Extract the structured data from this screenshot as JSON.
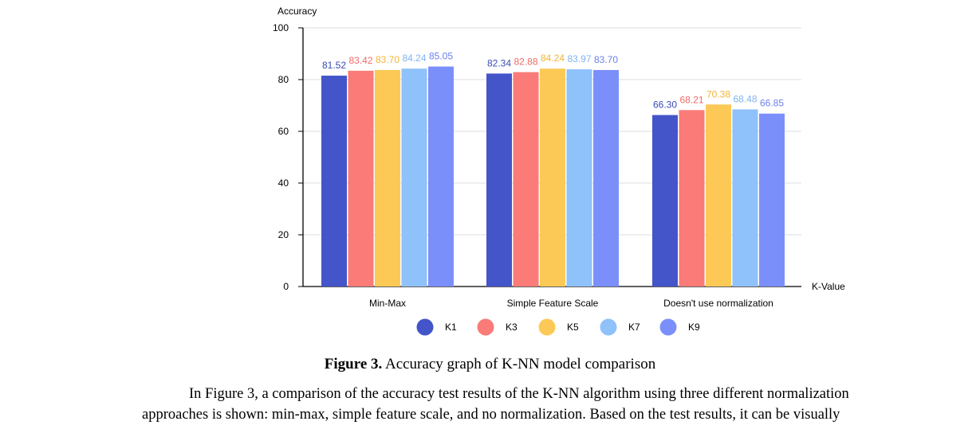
{
  "chart_data": {
    "type": "bar",
    "ylabel": "Accuracy",
    "xlabel": "K-Value",
    "ylim": [
      0,
      100
    ],
    "yticks": [
      0,
      20,
      40,
      60,
      80,
      100
    ],
    "grid": true,
    "legend_position": "bottom",
    "categories": [
      "Min-Max",
      "Simple Feature Scale",
      "Doesn't use normalization"
    ],
    "series": [
      {
        "name": "K1",
        "color": "#4455c9",
        "label_color": "#3a4bb5",
        "values": [
          81.52,
          82.34,
          66.3
        ],
        "labels": [
          "81.52",
          "82.34",
          "66.30"
        ]
      },
      {
        "name": "K3",
        "color": "#fa7b77",
        "label_color": "#f06a66",
        "values": [
          83.42,
          82.88,
          68.21
        ],
        "labels": [
          "83.42",
          "82.88",
          "68.21"
        ]
      },
      {
        "name": "K5",
        "color": "#fdc956",
        "label_color": "#f2b535",
        "values": [
          83.7,
          84.24,
          70.38
        ],
        "labels": [
          "83.70",
          "84.24",
          "70.38"
        ]
      },
      {
        "name": "K7",
        "color": "#8fc1fb",
        "label_color": "#7fb3f3",
        "values": [
          84.24,
          83.97,
          68.48
        ],
        "labels": [
          "84.24",
          "83.97",
          "68.48"
        ]
      },
      {
        "name": "K9",
        "color": "#7b8ffb",
        "label_color": "#6a7fef",
        "values": [
          85.05,
          83.7,
          66.85
        ],
        "labels": [
          "85.05",
          "83.70",
          "66.85"
        ]
      }
    ]
  },
  "caption": {
    "prefix": "Figure 3.",
    "text": " Accuracy graph of K-NN model comparison"
  },
  "body_text": {
    "line1": "In Figure 3, a comparison of the accuracy test results of the K-NN algorithm using three different normalization",
    "line2": "approaches is shown: min-max, simple feature scale, and no normalization. Based on the test results, it can be visually"
  }
}
